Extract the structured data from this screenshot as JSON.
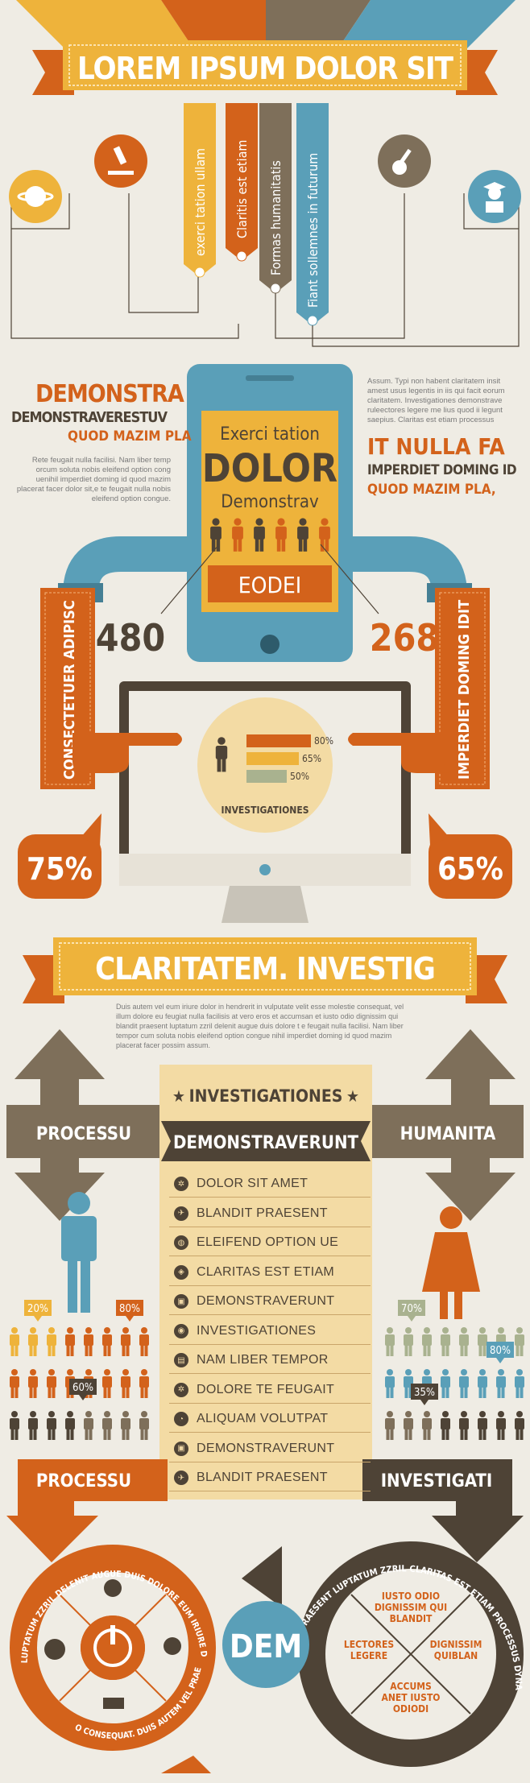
{
  "colors": {
    "background": "#efece4",
    "orange": "#d3621b",
    "yellow": "#eeb33b",
    "brown": "#4e4336",
    "taupe": "#7e6f5a",
    "blue": "#5a9fb8",
    "tan": "#f3dba4",
    "green": "#a9b28f"
  },
  "header": {
    "title": "LOREM IPSUM DOLOR SIT"
  },
  "top_ribbons": [
    {
      "label": "exerci tation ullam",
      "color": "#eeb33b"
    },
    {
      "label": "Claritis est etiam",
      "color": "#d3621b"
    },
    {
      "label": "Formas humanitatis",
      "color": "#7e6f5a"
    },
    {
      "label": "Fiant sollemnes in futurum",
      "color": "#5a9fb8"
    }
  ],
  "top_icons": [
    {
      "name": "planet-icon",
      "color": "#eeb33b"
    },
    {
      "name": "microscope-icon",
      "color": "#d3621b"
    },
    {
      "name": "guitar-icon",
      "color": "#7e6f5a"
    },
    {
      "name": "graduate-icon",
      "color": "#5a9fb8"
    }
  ],
  "left_block": {
    "heading1": "DEMONSTRA",
    "heading2": "DEMONSTRAVERESTUV",
    "heading3": "QUOD MAZIM PLA",
    "body": "Rete feugait nulla facilisi. Nam liber temp orcum soluta nobis eleifend option cong uenihil imperdiet doming id quod mazim placerat facer dolor sit,e te feugait nulla nobis eleifend option congue."
  },
  "right_block": {
    "body": "Assum. Typi non habent claritatem insit amest usus legentis in iis qui facit eorum claritatem. Investigationes demonstrave ruleectores legere me lius quod ii legunt saepius. Claritas est etiam processus",
    "heading1": "IT NULLA FA",
    "heading2": "IMPERDIET DOMING ID",
    "heading3": "QUOD MAZIM PLA,"
  },
  "phone": {
    "line1": "Exerci tation",
    "line2": "DOLOR",
    "line3": "Demonstrav",
    "button": "EODEI"
  },
  "stats": {
    "left_number": "480",
    "right_number": "268",
    "left_pipe_label": "CONSECTETUER ADIPISC",
    "right_pipe_label": "IMPERDIET DOMING IDIT",
    "left_bubble": "75%",
    "right_bubble": "65%"
  },
  "monitor_chart": {
    "title": "INVESTIGATIONES",
    "bars": [
      {
        "label": "80%",
        "value": 80,
        "color": "#d3621b"
      },
      {
        "label": "65%",
        "value": 65,
        "color": "#eeb33b"
      },
      {
        "label": "50%",
        "value": 50,
        "color": "#a9b28f"
      }
    ]
  },
  "section2": {
    "title": "CLARITATEM. INVESTIG",
    "body": "Duis autem vel eum iriure dolor in hendrerit in vulputate velit esse molestie consequat, vel illum dolore eu feugiat nulla facilisis at vero eros et accumsan et iusto odio dignissim qui blandit praesent luptatum zzril delenit augue duis dolore t e feugait nulla facilisi. Nam liber tempor cum soluta nobis eleifend option congue nihil imperdiet doming id quod mazim placerat facer possim assum."
  },
  "center_panel": {
    "header": "INVESTIGATIONES",
    "subheader": "DEMONSTRAVERUNT",
    "items": [
      {
        "icon": "gear-icon",
        "glyph": "✲",
        "label": "DOLOR SIT AMET"
      },
      {
        "icon": "plane-icon",
        "glyph": "✈",
        "label": "BLANDIT PRAESENT"
      },
      {
        "icon": "globe-icon",
        "glyph": "◍",
        "label": "ELEIFEND OPTION UE"
      },
      {
        "icon": "tag-icon",
        "glyph": "◈",
        "label": "CLARITAS EST ETIAM"
      },
      {
        "icon": "lock-icon",
        "glyph": "▣",
        "label": "DEMONSTRAVERUNT"
      },
      {
        "icon": "chrome-icon",
        "glyph": "◉",
        "label": "INVESTIGATIONES"
      },
      {
        "icon": "briefcase-icon",
        "glyph": "▤",
        "label": "NAM LIBER TEMPOR"
      },
      {
        "icon": "gear-icon",
        "glyph": "✲",
        "label": "DOLORE TE FEUGAIT"
      },
      {
        "icon": "speedometer-icon",
        "glyph": "◔",
        "label": "ALIQUAM  VOLUTPAT"
      },
      {
        "icon": "lock-icon",
        "glyph": "▣",
        "label": "DEMONSTRAVERUNT"
      },
      {
        "icon": "plane-icon",
        "glyph": "✈",
        "label": "BLANDIT PRAESENT"
      }
    ]
  },
  "arrows": {
    "left_label": "PROCESSU",
    "right_label": "HUMANITA",
    "bottom_left_label": "PROCESSU",
    "bottom_right_label": "INVESTIGATI"
  },
  "people_stats": {
    "left": [
      {
        "label": "20%",
        "value": 20
      },
      {
        "label": "80%",
        "value": 80
      },
      {
        "label": "60%",
        "value": 60
      }
    ],
    "right": [
      {
        "label": "70%",
        "value": 70
      },
      {
        "label": "80%",
        "value": 80
      },
      {
        "label": "35%",
        "value": 35
      }
    ]
  },
  "bottom": {
    "left_circle_text": "LUPTATUM ZZRIL DELENIT AUGUE DUIS DOLORE EUM IRIURE DOLOR IN HENDRERIT IN",
    "left_circle_text2": "O CONSEQUAT. DUIS AUTEM VEL PRAESENT",
    "center_badge": "DEM",
    "right_circle_text": "PRAESENT LUPTATUM ZZRIL CLARITAS EST ETIAM PROCESSUS DYNAMICUS, QUI SEQUITUR MUTATIONEM",
    "quadrants": [
      "IUSTO ODIO DIGNISSIM QUI BLANDIT",
      "DIGNISSIM QUIBLAN",
      "ACCUMS ANET IUSTO ODIODI",
      "LECTORES LEGERE"
    ],
    "left_icons": [
      "stopwatch-icon",
      "lightbulb-icon",
      "laptop-icon",
      "globe-icon",
      "power-icon"
    ]
  }
}
